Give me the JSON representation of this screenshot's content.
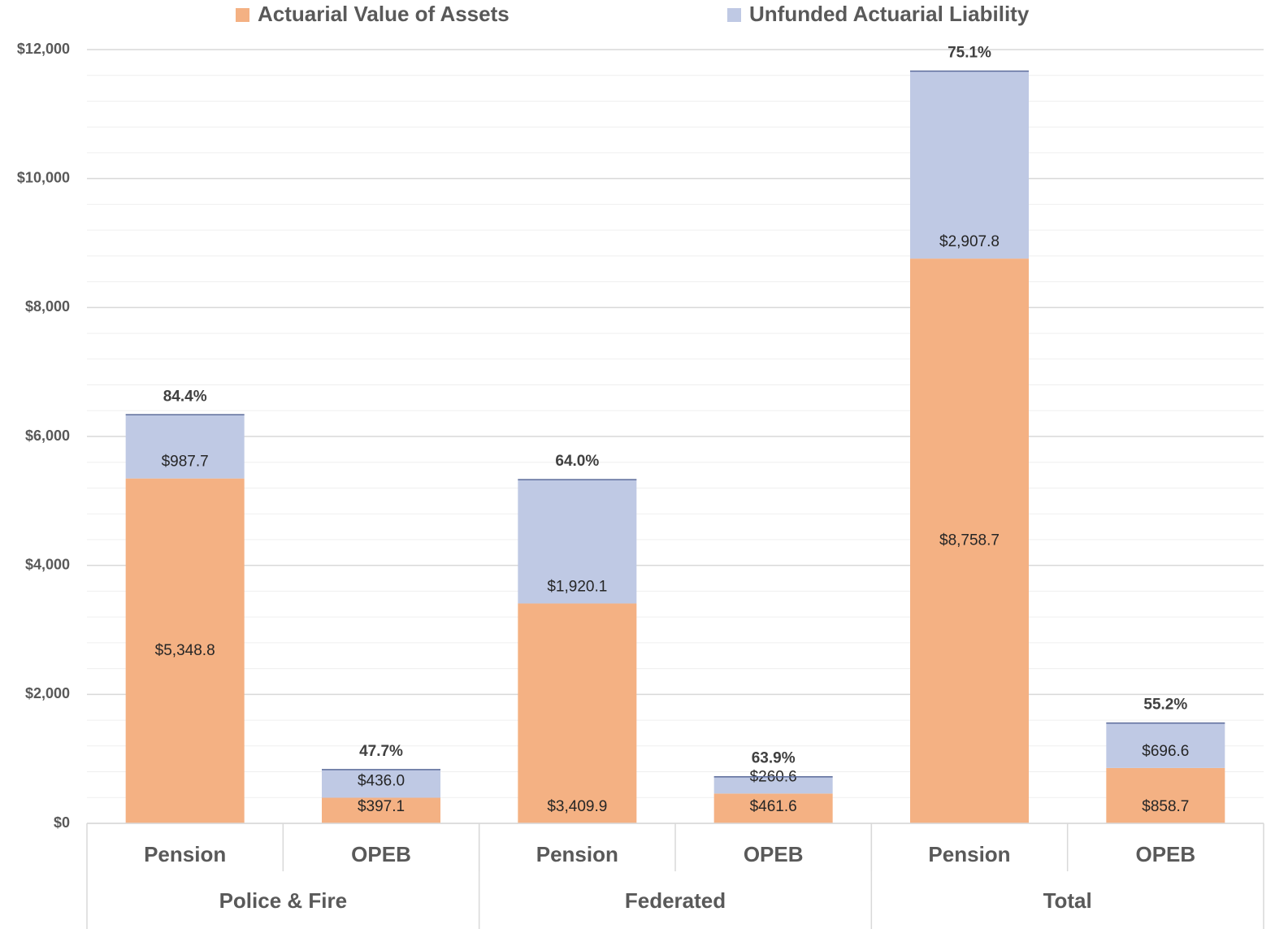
{
  "chart_data": {
    "type": "stacked_bar",
    "categories": [
      "Pension",
      "OPEB",
      "Pension",
      "OPEB",
      "Pension",
      "OPEB"
    ],
    "groups": [
      {
        "name": "Police & Fire",
        "span": 2
      },
      {
        "name": "Federated",
        "span": 2
      },
      {
        "name": "Total",
        "span": 2
      }
    ],
    "series": [
      {
        "name": "Actuarial Value of Assets",
        "color": "#f4b183",
        "values": [
          5348.8,
          397.1,
          3409.9,
          461.6,
          8758.7,
          858.7
        ],
        "value_labels": [
          "$5,348.8",
          "$397.1",
          "$3,409.9",
          "$461.6",
          "$8,758.7",
          "$858.7"
        ]
      },
      {
        "name": "Unfunded Actuarial Liability",
        "color": "#bfc9e4",
        "values": [
          987.7,
          436.0,
          1920.1,
          260.6,
          2907.8,
          696.6
        ],
        "value_labels": [
          "$987.7",
          "$436.0",
          "$1,920.1",
          "$260.6",
          "$2,907.8",
          "$696.6"
        ]
      }
    ],
    "funded_ratio": {
      "values": [
        84.4,
        47.7,
        64.0,
        63.9,
        75.1,
        55.2
      ],
      "value_labels": [
        "84.4%",
        "47.7%",
        "64.0%",
        "63.9%",
        "75.1%",
        "55.2%"
      ]
    },
    "ylim": [
      0,
      12000
    ],
    "yticks": [
      {
        "value": 0,
        "label": "$0"
      },
      {
        "value": 2000,
        "label": "$2,000"
      },
      {
        "value": 4000,
        "label": "$4,000"
      },
      {
        "value": 6000,
        "label": "$6,000"
      },
      {
        "value": 8000,
        "label": "$8,000"
      },
      {
        "value": 10000,
        "label": "$10,000"
      },
      {
        "value": 12000,
        "label": "$12,000"
      }
    ],
    "minor_yticks": [
      400,
      800,
      1200,
      1600,
      2400,
      2800,
      3200,
      3600,
      4400,
      4800,
      5200,
      5600,
      6400,
      6800,
      7200,
      7600,
      8400,
      8800,
      9200,
      9600,
      10400,
      10800,
      11200,
      11600
    ],
    "grid": true,
    "legend": "top"
  }
}
